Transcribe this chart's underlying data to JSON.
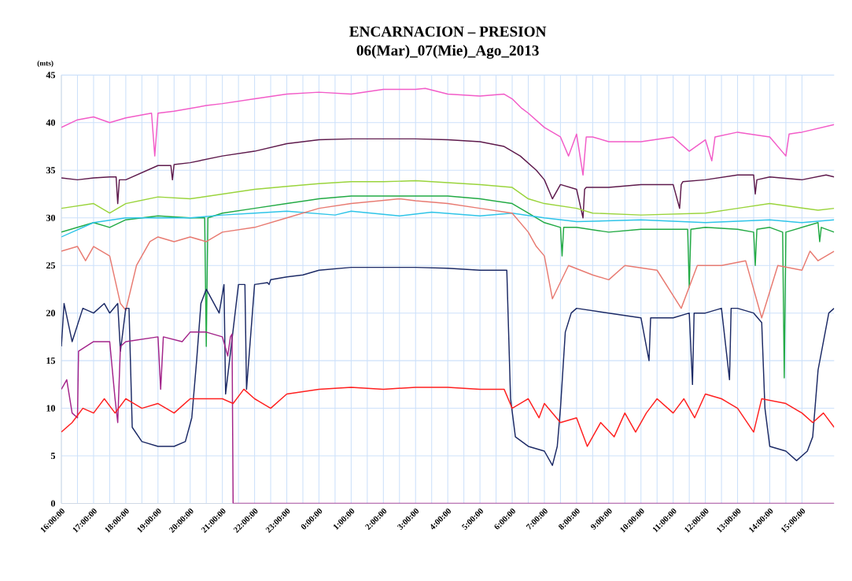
{
  "chart_data": {
    "type": "line",
    "title": "ENCARNACION – PRESION",
    "subtitle": "06(Mar)_07(Mie)_Ago_2013",
    "ylabel": "(mts)",
    "xlim": [
      "2013-08-06T16:00",
      "2013-08-07T16:00"
    ],
    "ylim": [
      0,
      45
    ],
    "yticks": [
      0,
      5,
      10,
      15,
      20,
      25,
      30,
      35,
      40,
      45
    ],
    "xticks": [
      {
        "value": "2013-08-06T16:00",
        "label": "16:00:00"
      },
      {
        "value": "2013-08-06T17:00",
        "label": "17:00:00"
      },
      {
        "value": "2013-08-06T18:00",
        "label": "18:00:00"
      },
      {
        "value": "2013-08-06T19:00",
        "label": "19:00:00"
      },
      {
        "value": "2013-08-06T20:00",
        "label": "20:00:00"
      },
      {
        "value": "2013-08-06T21:00",
        "label": "21:00:00"
      },
      {
        "value": "2013-08-06T22:00",
        "label": "22:00:00"
      },
      {
        "value": "2013-08-06T23:00",
        "label": "23:00:00"
      },
      {
        "value": "2013-08-07T00:00",
        "label": "0:00:00"
      },
      {
        "value": "2013-08-07T01:00",
        "label": "1:00:00"
      },
      {
        "value": "2013-08-07T02:00",
        "label": "2:00:00"
      },
      {
        "value": "2013-08-07T03:00",
        "label": "3:00:00"
      },
      {
        "value": "2013-08-07T04:00",
        "label": "4:00:00"
      },
      {
        "value": "2013-08-07T05:00",
        "label": "5:00:00"
      },
      {
        "value": "2013-08-07T06:00",
        "label": "6:00:00"
      },
      {
        "value": "2013-08-07T07:00",
        "label": "7:00:00"
      },
      {
        "value": "2013-08-07T08:00",
        "label": "8:00:00"
      },
      {
        "value": "2013-08-07T09:00",
        "label": "9:00:00"
      },
      {
        "value": "2013-08-07T10:00",
        "label": "10:00:00"
      },
      {
        "value": "2013-08-07T11:00",
        "label": "11:00:00"
      },
      {
        "value": "2013-08-07T12:00",
        "label": "12:00:00"
      },
      {
        "value": "2013-08-07T13:00",
        "label": "13:00:00"
      },
      {
        "value": "2013-08-07T14:00",
        "label": "14:00:00"
      },
      {
        "value": "2013-08-07T15:00",
        "label": "15:00:00"
      }
    ],
    "grid": true,
    "marker": "none",
    "line_style": "solid",
    "series": [
      {
        "color": "#f25cc8",
        "x": [
          "2013-08-06T16:00",
          "2013-08-06T16:30",
          "2013-08-06T17:00",
          "2013-08-06T17:30",
          "2013-08-06T18:00",
          "2013-08-06T18:48",
          "2013-08-06T18:54",
          "2013-08-06T19:00",
          "2013-08-06T19:30",
          "2013-08-06T20:00",
          "2013-08-06T20:30",
          "2013-08-06T21:00",
          "2013-08-06T22:00",
          "2013-08-06T23:00",
          "2013-08-07T00:00",
          "2013-08-07T01:00",
          "2013-08-07T02:00",
          "2013-08-07T03:00",
          "2013-08-07T03:18",
          "2013-08-07T04:00",
          "2013-08-07T05:00",
          "2013-08-07T05:45",
          "2013-08-07T06:00",
          "2013-08-07T06:18",
          "2013-08-07T06:30",
          "2013-08-07T07:00",
          "2013-08-07T07:30",
          "2013-08-07T07:45",
          "2013-08-07T08:00",
          "2013-08-07T08:12",
          "2013-08-07T08:18",
          "2013-08-07T08:30",
          "2013-08-07T09:00",
          "2013-08-07T10:00",
          "2013-08-07T11:00",
          "2013-08-07T11:30",
          "2013-08-07T12:00",
          "2013-08-07T12:12",
          "2013-08-07T12:18",
          "2013-08-07T13:00",
          "2013-08-07T14:00",
          "2013-08-07T14:30",
          "2013-08-07T14:36",
          "2013-08-07T15:00",
          "2013-08-07T16:00"
        ],
        "values": [
          39.5,
          40.3,
          40.6,
          40,
          40.5,
          41,
          36.5,
          41,
          41.2,
          41.5,
          41.8,
          42,
          42.5,
          43,
          43.2,
          43,
          43.5,
          43.5,
          43.6,
          43,
          42.8,
          43,
          42.5,
          41.5,
          41,
          39.5,
          38.5,
          36.5,
          38.8,
          34.5,
          38.5,
          38.5,
          38,
          38,
          38.5,
          37,
          38.2,
          36,
          38.5,
          39,
          38.5,
          36.5,
          38.8,
          39,
          39.8
        ]
      },
      {
        "color": "#5e1a4c",
        "x": [
          "2013-08-06T16:00",
          "2013-08-06T16:30",
          "2013-08-06T17:00",
          "2013-08-06T17:30",
          "2013-08-06T17:42",
          "2013-08-06T17:45",
          "2013-08-06T17:48",
          "2013-08-06T18:00",
          "2013-08-06T19:00",
          "2013-08-06T19:24",
          "2013-08-06T19:27",
          "2013-08-06T19:30",
          "2013-08-06T20:00",
          "2013-08-06T21:00",
          "2013-08-06T22:00",
          "2013-08-06T23:00",
          "2013-08-07T00:00",
          "2013-08-07T01:00",
          "2013-08-07T02:00",
          "2013-08-07T03:00",
          "2013-08-07T04:00",
          "2013-08-07T05:00",
          "2013-08-07T05:45",
          "2013-08-07T06:15",
          "2013-08-07T06:45",
          "2013-08-07T07:00",
          "2013-08-07T07:15",
          "2013-08-07T07:30",
          "2013-08-07T08:00",
          "2013-08-07T08:12",
          "2013-08-07T08:15",
          "2013-08-07T08:18",
          "2013-08-07T09:00",
          "2013-08-07T10:00",
          "2013-08-07T11:00",
          "2013-08-07T11:12",
          "2013-08-07T11:15",
          "2013-08-07T11:18",
          "2013-08-07T12:00",
          "2013-08-07T13:00",
          "2013-08-07T13:30",
          "2013-08-07T13:33",
          "2013-08-07T13:36",
          "2013-08-07T14:00",
          "2013-08-07T15:00",
          "2013-08-07T15:45",
          "2013-08-07T16:00"
        ],
        "values": [
          34.2,
          34,
          34.2,
          34.3,
          34.3,
          31.5,
          34,
          34,
          35.5,
          35.5,
          34,
          35.6,
          35.8,
          36.5,
          37,
          37.8,
          38.2,
          38.3,
          38.3,
          38.3,
          38.2,
          38,
          37.5,
          36.5,
          35,
          34,
          32,
          33.5,
          33,
          30,
          33,
          33.2,
          33.2,
          33.5,
          33.5,
          31,
          33.5,
          33.8,
          34,
          34.5,
          34.5,
          32.5,
          34,
          34.3,
          34,
          34.5,
          34.3
        ]
      },
      {
        "color": "#9ad43c",
        "x": [
          "2013-08-06T16:00",
          "2013-08-06T17:00",
          "2013-08-06T17:30",
          "2013-08-06T18:00",
          "2013-08-06T19:00",
          "2013-08-06T20:00",
          "2013-08-06T21:00",
          "2013-08-06T22:00",
          "2013-08-06T23:00",
          "2013-08-07T00:00",
          "2013-08-07T01:00",
          "2013-08-07T02:00",
          "2013-08-07T03:00",
          "2013-08-07T04:00",
          "2013-08-07T05:00",
          "2013-08-07T06:00",
          "2013-08-07T06:30",
          "2013-08-07T07:00",
          "2013-08-07T08:00",
          "2013-08-07T08:30",
          "2013-08-07T10:00",
          "2013-08-07T12:00",
          "2013-08-07T13:00",
          "2013-08-07T14:00",
          "2013-08-07T15:30",
          "2013-08-07T16:00"
        ],
        "values": [
          31,
          31.5,
          30.5,
          31.5,
          32.2,
          32,
          32.5,
          33,
          33.3,
          33.6,
          33.8,
          33.8,
          33.9,
          33.7,
          33.5,
          33.2,
          32,
          31.5,
          31,
          30.5,
          30.3,
          30.5,
          31,
          31.5,
          30.8,
          31
        ]
      },
      {
        "color": "#22aa44",
        "x": [
          "2013-08-06T16:00",
          "2013-08-06T17:00",
          "2013-08-06T17:30",
          "2013-08-06T18:00",
          "2013-08-06T19:00",
          "2013-08-06T20:00",
          "2013-08-06T20:27",
          "2013-08-06T20:30",
          "2013-08-06T20:33",
          "2013-08-06T21:00",
          "2013-08-06T22:00",
          "2013-08-06T23:00",
          "2013-08-07T00:00",
          "2013-08-07T01:00",
          "2013-08-07T02:00",
          "2013-08-07T03:00",
          "2013-08-07T04:00",
          "2013-08-07T05:00",
          "2013-08-07T06:00",
          "2013-08-07T06:30",
          "2013-08-07T07:00",
          "2013-08-07T07:30",
          "2013-08-07T07:33",
          "2013-08-07T07:36",
          "2013-08-07T08:00",
          "2013-08-07T09:00",
          "2013-08-07T10:00",
          "2013-08-07T11:00",
          "2013-08-07T11:27",
          "2013-08-07T11:30",
          "2013-08-07T11:33",
          "2013-08-07T12:00",
          "2013-08-07T13:00",
          "2013-08-07T13:30",
          "2013-08-07T13:33",
          "2013-08-07T13:36",
          "2013-08-07T14:00",
          "2013-08-07T14:24",
          "2013-08-07T14:27",
          "2013-08-07T14:30",
          "2013-08-07T15:00",
          "2013-08-07T15:30",
          "2013-08-07T15:33",
          "2013-08-07T15:36",
          "2013-08-07T16:00"
        ],
        "values": [
          28.5,
          29.5,
          29,
          29.8,
          30.2,
          30,
          30,
          16.5,
          30,
          30.5,
          31,
          31.5,
          32,
          32.3,
          32.3,
          32.3,
          32.3,
          32,
          31.5,
          30.5,
          29.5,
          29,
          26,
          29,
          29,
          28.5,
          28.8,
          28.8,
          28.8,
          22.7,
          28.8,
          29,
          28.8,
          28.5,
          25,
          28.8,
          29,
          28.5,
          13.2,
          28.5,
          29,
          29.5,
          27.5,
          29,
          28.5
        ]
      },
      {
        "color": "#2ec4e8",
        "x": [
          "2013-08-06T16:00",
          "2013-08-06T17:00",
          "2013-08-06T18:00",
          "2013-08-06T20:00",
          "2013-08-06T21:00",
          "2013-08-06T22:00",
          "2013-08-06T23:00",
          "2013-08-07T00:30",
          "2013-08-07T01:00",
          "2013-08-07T02:30",
          "2013-08-07T03:30",
          "2013-08-07T05:00",
          "2013-08-07T06:00",
          "2013-08-07T07:00",
          "2013-08-07T08:00",
          "2013-08-07T10:00",
          "2013-08-07T12:00",
          "2013-08-07T14:00",
          "2013-08-07T15:00",
          "2013-08-07T16:00"
        ],
        "values": [
          28,
          29.5,
          30,
          30,
          30.3,
          30.5,
          30.7,
          30.3,
          30.7,
          30.2,
          30.6,
          30.2,
          30.5,
          30,
          29.6,
          29.8,
          29.5,
          29.8,
          29.5,
          29.8
        ]
      },
      {
        "color": "#e87b72",
        "x": [
          "2013-08-06T16:00",
          "2013-08-06T16:30",
          "2013-08-06T16:45",
          "2013-08-06T17:00",
          "2013-08-06T17:30",
          "2013-08-06T17:50",
          "2013-08-06T18:00",
          "2013-08-06T18:20",
          "2013-08-06T18:45",
          "2013-08-06T19:00",
          "2013-08-06T19:30",
          "2013-08-06T20:00",
          "2013-08-06T20:30",
          "2013-08-06T21:00",
          "2013-08-06T22:00",
          "2013-08-06T23:00",
          "2013-08-07T00:00",
          "2013-08-07T01:00",
          "2013-08-07T02:30",
          "2013-08-07T03:00",
          "2013-08-07T04:00",
          "2013-08-07T05:00",
          "2013-08-07T06:00",
          "2013-08-07T06:30",
          "2013-08-07T06:45",
          "2013-08-07T07:00",
          "2013-08-07T07:15",
          "2013-08-07T07:45",
          "2013-08-07T08:30",
          "2013-08-07T09:00",
          "2013-08-07T09:30",
          "2013-08-07T10:30",
          "2013-08-07T11:15",
          "2013-08-07T11:45",
          "2013-08-07T12:30",
          "2013-08-07T13:15",
          "2013-08-07T13:45",
          "2013-08-07T14:15",
          "2013-08-07T15:00",
          "2013-08-07T15:15",
          "2013-08-07T15:30",
          "2013-08-07T16:00"
        ],
        "values": [
          26.5,
          27,
          25.5,
          27,
          26,
          21,
          20.3,
          25,
          27.5,
          28,
          27.5,
          28,
          27.5,
          28.5,
          29,
          30,
          31,
          31.5,
          32,
          31.8,
          31.5,
          31,
          30.5,
          28.5,
          27,
          26,
          21.5,
          25,
          24,
          23.5,
          25,
          24.5,
          20.5,
          25,
          25,
          25.5,
          19.5,
          25,
          24.5,
          26.5,
          25.5,
          26.5
        ]
      },
      {
        "color": "#1c2a66",
        "x": [
          "2013-08-06T16:00",
          "2013-08-06T16:05",
          "2013-08-06T16:20",
          "2013-08-06T16:40",
          "2013-08-06T17:00",
          "2013-08-06T17:20",
          "2013-08-06T17:30",
          "2013-08-06T17:45",
          "2013-08-06T17:50",
          "2013-08-06T18:00",
          "2013-08-06T18:06",
          "2013-08-06T18:12",
          "2013-08-06T18:30",
          "2013-08-06T19:00",
          "2013-08-06T19:30",
          "2013-08-06T19:51",
          "2013-08-06T20:03",
          "2013-08-06T20:12",
          "2013-08-06T20:20",
          "2013-08-06T20:30",
          "2013-08-06T20:54",
          "2013-08-06T21:03",
          "2013-08-06T21:06",
          "2013-08-06T21:30",
          "2013-08-06T21:42",
          "2013-08-06T21:45",
          "2013-08-06T22:00",
          "2013-08-06T22:24",
          "2013-08-06T22:27",
          "2013-08-06T22:30",
          "2013-08-06T23:00",
          "2013-08-06T23:30",
          "2013-08-07T00:00",
          "2013-08-07T01:00",
          "2013-08-07T02:00",
          "2013-08-07T03:00",
          "2013-08-07T04:00",
          "2013-08-07T05:00",
          "2013-08-07T05:50",
          "2013-08-07T05:57",
          "2013-08-07T06:06",
          "2013-08-07T06:30",
          "2013-08-07T07:00",
          "2013-08-07T07:15",
          "2013-08-07T07:24",
          "2013-08-07T07:30",
          "2013-08-07T07:39",
          "2013-08-07T07:50",
          "2013-08-07T08:00",
          "2013-08-07T09:00",
          "2013-08-07T10:00",
          "2013-08-07T10:15",
          "2013-08-07T10:18",
          "2013-08-07T11:00",
          "2013-08-07T11:30",
          "2013-08-07T11:36",
          "2013-08-07T11:39",
          "2013-08-07T12:00",
          "2013-08-07T12:30",
          "2013-08-07T12:45",
          "2013-08-07T12:48",
          "2013-08-07T13:00",
          "2013-08-07T13:30",
          "2013-08-07T13:45",
          "2013-08-07T13:51",
          "2013-08-07T14:00",
          "2013-08-07T14:30",
          "2013-08-07T14:50",
          "2013-08-07T15:10",
          "2013-08-07T15:20",
          "2013-08-07T15:30",
          "2013-08-07T15:50",
          "2013-08-07T16:00"
        ],
        "values": [
          16.5,
          21,
          17,
          20.5,
          20,
          21,
          20,
          21,
          16,
          20.5,
          20.5,
          8,
          6.5,
          6,
          6,
          6.5,
          9,
          15,
          21,
          22.5,
          20,
          23,
          11.5,
          23,
          23,
          12,
          23,
          23.2,
          23,
          23.5,
          23.8,
          24,
          24.5,
          24.8,
          24.8,
          24.8,
          24.7,
          24.5,
          24.5,
          11,
          7,
          6,
          5.5,
          4,
          6,
          10,
          18,
          20,
          20.5,
          20,
          19.5,
          15,
          19.5,
          19.5,
          20,
          12.5,
          20,
          20,
          20.5,
          13,
          20.5,
          20.5,
          20,
          19,
          10,
          6,
          5.5,
          4.5,
          5.5,
          7,
          14,
          20,
          20.5
        ]
      },
      {
        "color": "#a3248a",
        "x": [
          "2013-08-06T16:00",
          "2013-08-06T16:10",
          "2013-08-06T16:20",
          "2013-08-06T16:30",
          "2013-08-06T16:32",
          "2013-08-06T17:00",
          "2013-08-06T17:30",
          "2013-08-06T17:40",
          "2013-08-06T17:45",
          "2013-08-06T17:50",
          "2013-08-06T18:00",
          "2013-08-06T19:00",
          "2013-08-06T19:05",
          "2013-08-06T19:10",
          "2013-08-06T19:45",
          "2013-08-06T20:00",
          "2013-08-06T20:30",
          "2013-08-06T21:00",
          "2013-08-06T21:10",
          "2013-08-06T21:15",
          "2013-08-06T21:18",
          "2013-08-06T21:20",
          "2013-08-07T16:00"
        ],
        "values": [
          12,
          13,
          9.5,
          9,
          16,
          17,
          17,
          11,
          8.5,
          16.5,
          17,
          17.5,
          12,
          17.5,
          17,
          18,
          18,
          17.5,
          15.5,
          17.5,
          17.8,
          0,
          0
        ]
      },
      {
        "color": "#ff2020",
        "x": [
          "2013-08-06T16:00",
          "2013-08-06T16:20",
          "2013-08-06T16:40",
          "2013-08-06T17:00",
          "2013-08-06T17:20",
          "2013-08-06T17:40",
          "2013-08-06T18:00",
          "2013-08-06T18:30",
          "2013-08-06T19:00",
          "2013-08-06T19:30",
          "2013-08-06T20:00",
          "2013-08-06T21:00",
          "2013-08-06T21:20",
          "2013-08-06T21:40",
          "2013-08-06T22:00",
          "2013-08-06T22:30",
          "2013-08-06T23:00",
          "2013-08-07T00:00",
          "2013-08-07T01:00",
          "2013-08-07T02:00",
          "2013-08-07T03:00",
          "2013-08-07T04:00",
          "2013-08-07T05:00",
          "2013-08-07T05:45",
          "2013-08-07T06:00",
          "2013-08-07T06:30",
          "2013-08-07T06:50",
          "2013-08-07T07:00",
          "2013-08-07T07:30",
          "2013-08-07T08:00",
          "2013-08-07T08:20",
          "2013-08-07T08:45",
          "2013-08-07T09:10",
          "2013-08-07T09:30",
          "2013-08-07T09:50",
          "2013-08-07T10:10",
          "2013-08-07T10:30",
          "2013-08-07T11:00",
          "2013-08-07T11:20",
          "2013-08-07T11:40",
          "2013-08-07T12:00",
          "2013-08-07T12:30",
          "2013-08-07T13:00",
          "2013-08-07T13:30",
          "2013-08-07T13:45",
          "2013-08-07T14:30",
          "2013-08-07T15:00",
          "2013-08-07T15:20",
          "2013-08-07T15:40",
          "2013-08-07T16:00"
        ],
        "values": [
          7.5,
          8.5,
          10,
          9.5,
          11,
          9.5,
          11,
          10,
          10.5,
          9.5,
          11,
          11,
          10.5,
          12,
          11,
          10,
          11.5,
          12,
          12.2,
          12,
          12.2,
          12.2,
          12,
          12,
          10,
          11,
          9,
          10.5,
          8.5,
          9,
          6,
          8.5,
          7,
          9.5,
          7.5,
          9.5,
          11,
          9.5,
          11,
          9,
          11.5,
          11,
          10,
          7.5,
          11,
          10.5,
          9.5,
          8.5,
          9.5,
          8
        ]
      }
    ]
  }
}
